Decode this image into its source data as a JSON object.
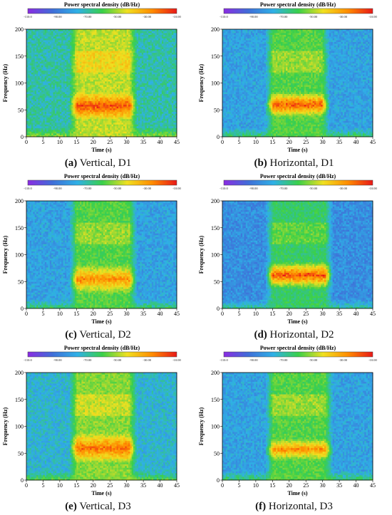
{
  "colorbar": {
    "title": "Power spectral density (dB/Hz)",
    "ticks": [
      "-110.0",
      "-90.00",
      "-70.00",
      "-50.00",
      "-30.00",
      "-10.00"
    ],
    "range": [
      -110,
      -10
    ],
    "colors": [
      "#8a2be2",
      "#3f6fd8",
      "#2fb0e6",
      "#39d04a",
      "#f0e020",
      "#ff8c00",
      "#e81818"
    ]
  },
  "panels": [
    {
      "letter": "(a)",
      "caption": "Vertical, D1"
    },
    {
      "letter": "(b)",
      "caption": "Horizontal, D1"
    },
    {
      "letter": "(c)",
      "caption": "Vertical, D2"
    },
    {
      "letter": "(d)",
      "caption": "Horizontal, D2"
    },
    {
      "letter": "(e)",
      "caption": "Vertical, D3"
    },
    {
      "letter": "(f)",
      "caption": "Horizontal, D3"
    }
  ],
  "chart_data": [
    {
      "type": "heatmap",
      "title": "Power spectral density (dB/Hz)",
      "xlabel": "Time (s)",
      "ylabel": "Frequency (Hz)",
      "xlim": [
        0,
        45
      ],
      "ylim": [
        0,
        200
      ],
      "xticks": [
        0,
        5,
        10,
        15,
        20,
        25,
        30,
        35,
        40,
        45
      ],
      "yticks": [
        0,
        50,
        100,
        150,
        200
      ],
      "colorbar_range": [
        -110,
        -10
      ],
      "excitation_window_s": [
        14,
        32
      ],
      "peak_band_hz": [
        40,
        75
      ],
      "peak_psd_db": -15,
      "background_psd_db": -70
    },
    {
      "type": "heatmap",
      "title": "Power spectral density (dB/Hz)",
      "xlabel": "Time (s)",
      "ylabel": "Frequency (Hz)",
      "xlim": [
        0,
        45
      ],
      "ylim": [
        0,
        200
      ],
      "xticks": [
        0,
        5,
        10,
        15,
        20,
        25,
        30,
        35,
        40,
        45
      ],
      "yticks": [
        0,
        50,
        100,
        150,
        200
      ],
      "colorbar_range": [
        -110,
        -10
      ],
      "excitation_window_s": [
        14,
        31
      ],
      "peak_band_hz": [
        45,
        75
      ],
      "peak_psd_db": -15,
      "background_psd_db": -80
    },
    {
      "type": "heatmap",
      "title": "Power spectral density (dB/Hz)",
      "xlabel": "Time (s)",
      "ylabel": "Frequency (Hz)",
      "xlim": [
        0,
        45
      ],
      "ylim": [
        0,
        200
      ],
      "xticks": [
        0,
        5,
        10,
        15,
        20,
        25,
        30,
        35,
        40,
        45
      ],
      "yticks": [
        0,
        50,
        100,
        150,
        200
      ],
      "colorbar_range": [
        -110,
        -10
      ],
      "excitation_window_s": [
        14,
        32
      ],
      "peak_band_hz": [
        35,
        75
      ],
      "peak_psd_db": -25,
      "background_psd_db": -80
    },
    {
      "type": "heatmap",
      "title": "Power spectral density (dB/Hz)",
      "xlabel": "Time (s)",
      "ylabel": "Frequency (Hz)",
      "xlim": [
        0,
        45
      ],
      "ylim": [
        0,
        200
      ],
      "xticks": [
        0,
        5,
        10,
        15,
        20,
        25,
        30,
        35,
        40,
        45
      ],
      "yticks": [
        0,
        50,
        100,
        150,
        200
      ],
      "colorbar_range": [
        -110,
        -10
      ],
      "excitation_window_s": [
        14,
        32
      ],
      "peak_band_hz": [
        45,
        80
      ],
      "peak_psd_db": -15,
      "background_psd_db": -85
    },
    {
      "type": "heatmap",
      "title": "Power spectral density (dB/Hz)",
      "xlabel": "Time (s)",
      "ylabel": "Frequency (Hz)",
      "xlim": [
        0,
        45
      ],
      "ylim": [
        0,
        200
      ],
      "xticks": [
        0,
        5,
        10,
        15,
        20,
        25,
        30,
        35,
        40,
        45
      ],
      "yticks": [
        0,
        50,
        100,
        150,
        200
      ],
      "colorbar_range": [
        -110,
        -10
      ],
      "excitation_window_s": [
        14,
        32
      ],
      "peak_band_hz": [
        40,
        80
      ],
      "peak_psd_db": -20,
      "background_psd_db": -75
    },
    {
      "type": "heatmap",
      "title": "Power spectral density (dB/Hz)",
      "xlabel": "Time (s)",
      "ylabel": "Frequency (Hz)",
      "xlim": [
        0,
        45
      ],
      "ylim": [
        0,
        200
      ],
      "xticks": [
        0,
        5,
        10,
        15,
        20,
        25,
        30,
        35,
        40,
        45
      ],
      "yticks": [
        0,
        50,
        100,
        150,
        200
      ],
      "colorbar_range": [
        -110,
        -10
      ],
      "excitation_window_s": [
        14,
        32
      ],
      "peak_band_hz": [
        45,
        70
      ],
      "peak_psd_db": -25,
      "background_psd_db": -80
    }
  ]
}
